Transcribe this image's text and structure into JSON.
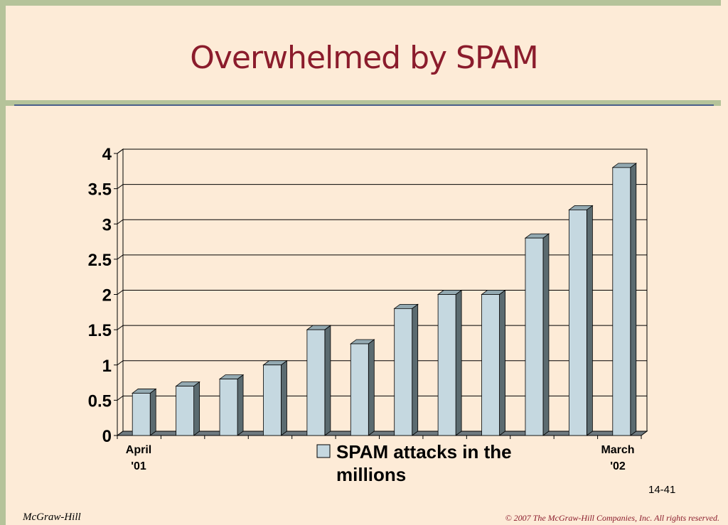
{
  "slide": {
    "title": "Overwhelmed by SPAM",
    "slide_number": "14-41",
    "footer_left": "McGraw-Hill",
    "footer_right": "© 2007 The McGraw-Hill Companies, Inc. All rights reserved."
  },
  "colors": {
    "bar_front": "#c5d8e0",
    "bar_top": "#93a9b1",
    "bar_side": "#5b6b70",
    "title": "#8b1c2c"
  },
  "chart_data": {
    "type": "bar",
    "title": "",
    "xlabel": "",
    "ylabel": "",
    "ylim": [
      0,
      4
    ],
    "y_ticks": [
      "0",
      "0.5",
      "1",
      "1.5",
      "2",
      "2.5",
      "3",
      "3.5",
      "4"
    ],
    "categories": [
      "April '01",
      "",
      "",
      "",
      "",
      "",
      "",
      "",
      "",
      "",
      "",
      "March '02"
    ],
    "first_label": [
      "April",
      "'01"
    ],
    "last_label": [
      "March",
      "'02"
    ],
    "series": [
      {
        "name": "SPAM attacks in the millions",
        "values": [
          0.6,
          0.7,
          0.8,
          1.0,
          1.5,
          1.3,
          1.8,
          2.0,
          2.0,
          2.8,
          3.2,
          3.8
        ]
      }
    ],
    "legend_lines": [
      "SPAM attacks in the",
      "millions"
    ],
    "grid": true,
    "legend_position": "bottom"
  }
}
